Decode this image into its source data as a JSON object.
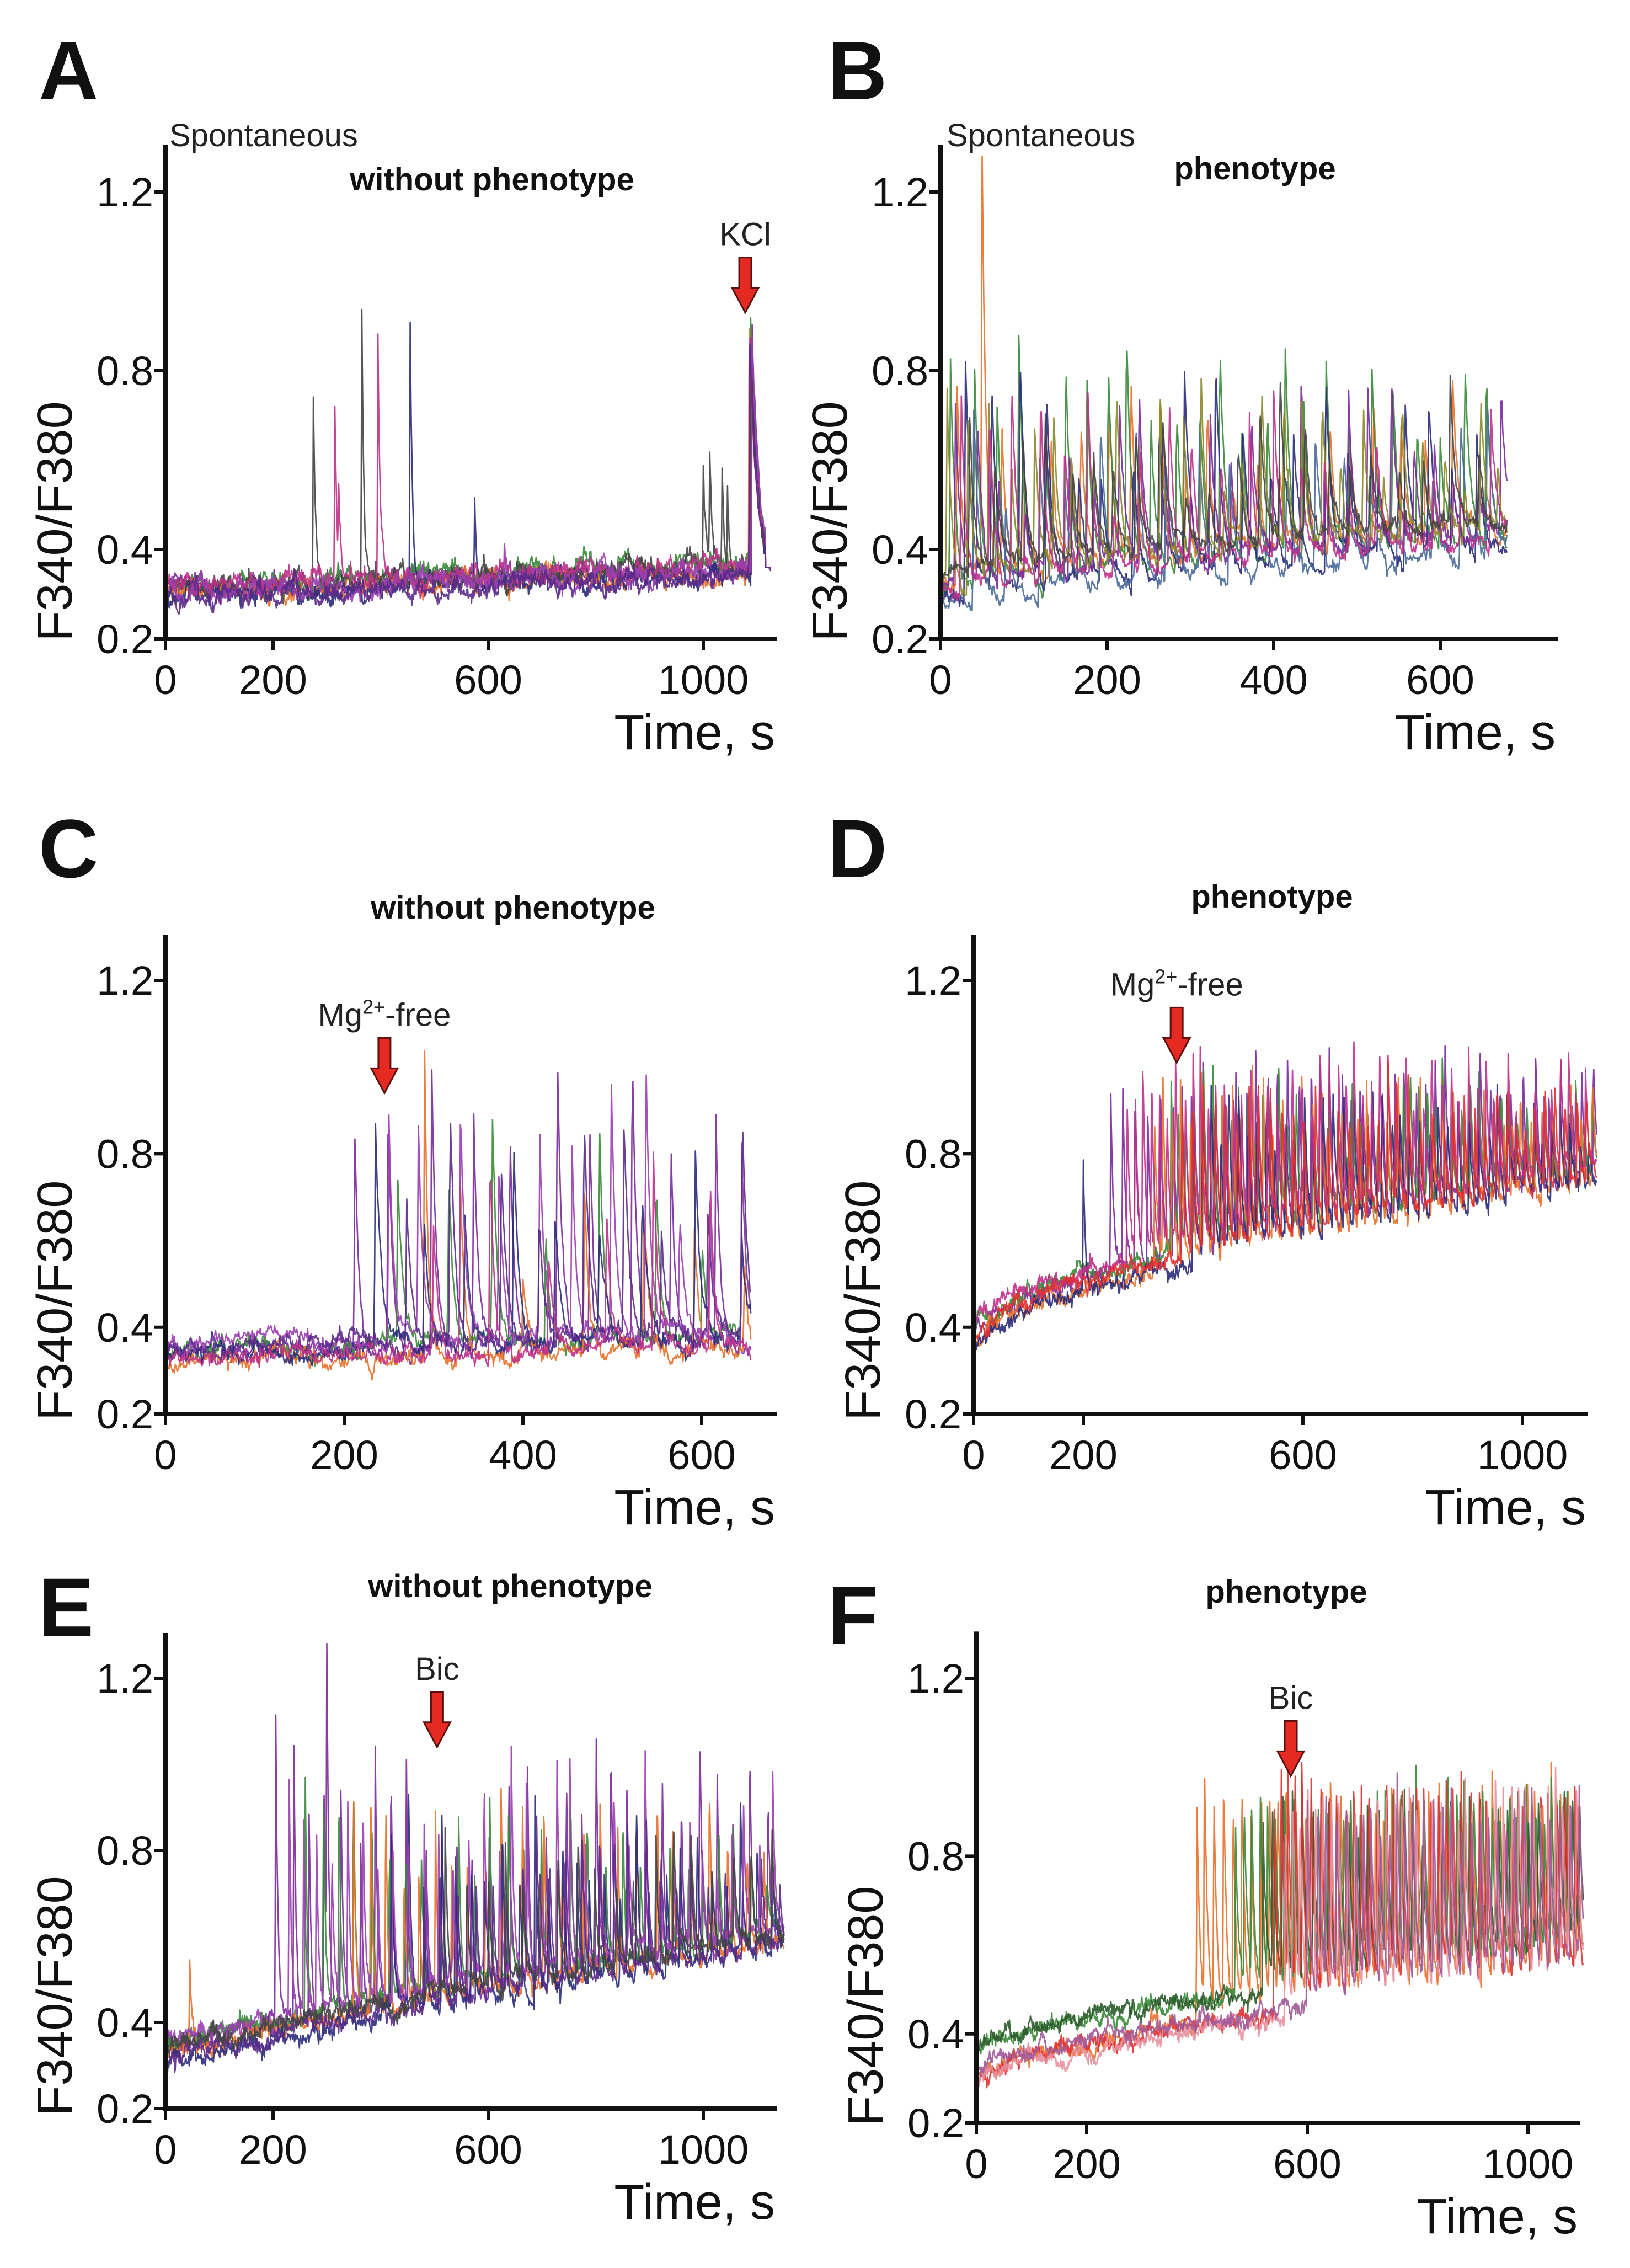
{
  "chart_data": [
    {
      "panel": "A",
      "type": "line",
      "subtitle": "Spontaneous",
      "title": "without phenotype",
      "xlabel": "Time, s",
      "ylabel": "F340/F380",
      "xlim": [
        0,
        1130
      ],
      "ylim": [
        0.2,
        1.3
      ],
      "xticks": [
        0,
        200,
        600,
        1000
      ],
      "xtick_labels": [
        "0",
        "200",
        "600",
        "1000"
      ],
      "yticks": [
        0.2,
        0.4,
        0.8,
        1.2
      ],
      "ytick_labels": [
        "0.2",
        "0.4",
        "0.8",
        "1.2"
      ],
      "annotation": {
        "label": "KCl",
        "t": 1078,
        "y": 0.93
      },
      "duration": 1125,
      "baseline": {
        "start": 0.31,
        "end": 0.36,
        "shape": 1
      },
      "noise": 0.011,
      "event": {
        "t": 1085,
        "peak": 0.92,
        "tau": 12
      },
      "series": [
        {
          "color": "#7b2a9b",
          "offset": 0.0,
          "spikes": []
        },
        {
          "color": "#3a8a3a",
          "offset": 0.01,
          "spikes": []
        },
        {
          "color": "#e8702a",
          "offset": -0.01,
          "spikes": []
        },
        {
          "color": "#2b2b7b",
          "offset": -0.015,
          "spikes": [
            [
              455,
              0.9
            ],
            [
              575,
              0.5
            ]
          ]
        },
        {
          "color": "#444444",
          "offset": 0.005,
          "spikes": [
            [
              275,
              0.75
            ],
            [
              365,
              0.95
            ],
            [
              1000,
              0.6
            ],
            [
              1012,
              0.6
            ],
            [
              1035,
              0.58
            ],
            [
              1045,
              0.55
            ]
          ]
        },
        {
          "color": "#c0308a",
          "offset": 0.012,
          "spikes": [
            [
              315,
              0.74
            ],
            [
              322,
              0.5
            ],
            [
              395,
              0.88
            ]
          ]
        },
        {
          "color": "#9b3fb0",
          "offset": -0.005,
          "spikes": [
            [
              630,
              0.42
            ]
          ]
        },
        {
          "color": "#5a2a8a",
          "offset": -0.02,
          "spikes": []
        }
      ]
    },
    {
      "panel": "B",
      "type": "line",
      "subtitle": "Spontaneous",
      "title": "phenotype",
      "xlabel": "Time, s",
      "ylabel": "F340/F380",
      "xlim": [
        0,
        690
      ],
      "ylim": [
        0.2,
        1.3
      ],
      "xticks": [
        0,
        200,
        400,
        600
      ],
      "xtick_labels": [
        "0",
        "200",
        "400",
        "600"
      ],
      "yticks": [
        0.2,
        0.4,
        0.8,
        1.2
      ],
      "ytick_labels": [
        "0.2",
        "0.4",
        "0.8",
        "1.2"
      ],
      "duration": 680,
      "baseline": {
        "start": 0.3,
        "end": 0.42,
        "shape": 0.7
      },
      "noise": 0.01,
      "series": [
        {
          "color": "#e8702a",
          "offset": 0.02,
          "spikes": [
            [
              50,
              1.05
            ]
          ],
          "train": {
            "start": 20,
            "period": 30,
            "peak": [
              0.55,
              0.8
            ],
            "tau": 6
          }
        },
        {
          "color": "#3a8a3a",
          "offset": 0.0,
          "train": {
            "start": 12,
            "period": 26,
            "peak": [
              0.6,
              0.88
            ],
            "tau": 6
          }
        },
        {
          "color": "#2b2b7b",
          "offset": -0.02,
          "train": {
            "start": 30,
            "period": 33,
            "peak": [
              0.55,
              0.85
            ],
            "tau": 7
          }
        },
        {
          "color": "#7b2a9b",
          "offset": 0.01,
          "train": {
            "start": 18,
            "period": 28,
            "peak": [
              0.5,
              0.8
            ],
            "tau": 6
          }
        },
        {
          "color": "#4a6a9a",
          "offset": -0.03,
          "train": {
            "start": 40,
            "period": 36,
            "peak": [
              0.5,
              0.75
            ],
            "tau": 7
          }
        },
        {
          "color": "#8a8a2a",
          "offset": 0.03,
          "train": {
            "start": 8,
            "period": 24,
            "peak": [
              0.55,
              0.82
            ],
            "tau": 5
          }
        },
        {
          "color": "#c0308a",
          "offset": 0.0,
          "train": {
            "start": 25,
            "period": 31,
            "peak": [
              0.5,
              0.78
            ],
            "tau": 6
          }
        },
        {
          "color": "#444444",
          "offset": 0.04,
          "train": {
            "start": 35,
            "period": 29,
            "peak": [
              0.5,
              0.8
            ],
            "tau": 6
          }
        }
      ]
    },
    {
      "panel": "C",
      "type": "line",
      "title": "without phenotype",
      "xlabel": "Time, s",
      "ylabel": "F340/F380",
      "xlim": [
        0,
        690
      ],
      "ylim": [
        0.2,
        1.3
      ],
      "xticks": [
        0,
        200,
        400,
        600
      ],
      "xtick_labels": [
        "0",
        "200",
        "400",
        "600"
      ],
      "yticks": [
        0.2,
        0.4,
        0.8,
        1.2
      ],
      "ytick_labels": [
        "0.2",
        "0.4",
        "0.8",
        "1.2"
      ],
      "annotation": {
        "label": "Mg",
        "sup": "2+",
        "suffix": "-free",
        "t": 245,
        "y": 0.94
      },
      "duration": 655,
      "baseline": {
        "start": 0.34,
        "end": 0.37,
        "shape": 1
      },
      "noise": 0.011,
      "series": [
        {
          "color": "#7b2a9b",
          "offset": 0.0,
          "train": {
            "start": 212,
            "period": 45,
            "peak": [
              0.7,
              1.05
            ],
            "tau": 5
          }
        },
        {
          "color": "#3a8a3a",
          "offset": 0.01,
          "train": {
            "start": 260,
            "period": 55,
            "peak": [
              0.6,
              0.9
            ],
            "tau": 5
          }
        },
        {
          "color": "#e8702a",
          "offset": -0.02,
          "spikes": [
            [
              290,
              1.05
            ]
          ],
          "train": {
            "start": 330,
            "period": 60,
            "peak": [
              0.5,
              0.8
            ],
            "tau": 5
          }
        },
        {
          "color": "#2b2b7b",
          "offset": 0.0,
          "train": {
            "start": 235,
            "period": 50,
            "peak": [
              0.6,
              0.95
            ],
            "tau": 6
          }
        },
        {
          "color": "#9b3fb0",
          "offset": 0.02,
          "train": {
            "start": 250,
            "period": 40,
            "peak": [
              0.65,
              1.0
            ],
            "tau": 5
          }
        },
        {
          "color": "#5a2a8a",
          "offset": 0.01,
          "train": {
            "start": 270,
            "period": 48,
            "peak": [
              0.6,
              0.95
            ],
            "tau": 6
          }
        },
        {
          "color": "#c0308a",
          "offset": -0.01,
          "train": {
            "start": 300,
            "period": 58,
            "peak": [
              0.55,
              0.85
            ],
            "tau": 5
          }
        }
      ]
    },
    {
      "panel": "D",
      "type": "line",
      "title": "phenotype",
      "xlabel": "Time, s",
      "ylabel": "F340/F380",
      "xlim": [
        0,
        1150
      ],
      "ylim": [
        0.2,
        1.3
      ],
      "xticks": [
        0,
        200,
        600,
        1000
      ],
      "xtick_labels": [
        "0",
        "200",
        "600",
        "1000"
      ],
      "yticks": [
        0.2,
        0.4,
        0.8,
        1.2
      ],
      "ytick_labels": [
        "0.2",
        "0.4",
        "0.8",
        "1.2"
      ],
      "annotation": {
        "label": "Mg",
        "sup": "2+",
        "suffix": "-free",
        "t": 370,
        "y": 1.01
      },
      "duration": 1135,
      "baseline": {
        "start": 0.38,
        "end": 0.74,
        "shape": 0.6
      },
      "noise": 0.01,
      "series": [
        {
          "color": "#7b2a9b",
          "offset": 0.0,
          "train": {
            "start": 250,
            "period": 20,
            "peak": [
              0.9,
              1.08
            ],
            "tau": 5
          }
        },
        {
          "color": "#3a8a3a",
          "offset": 0.01,
          "train": {
            "start": 360,
            "period": 15,
            "peak": [
              0.85,
              1.0
            ],
            "tau": 5
          }
        },
        {
          "color": "#e8702a",
          "offset": -0.02,
          "train": {
            "start": 330,
            "period": 18,
            "peak": [
              0.85,
              1.0
            ],
            "tau": 5
          }
        },
        {
          "color": "#2b2b7b",
          "offset": -0.03,
          "spikes": [
            [
              200,
              0.78
            ]
          ],
          "train": {
            "start": 400,
            "period": 17,
            "peak": [
              0.8,
              0.95
            ],
            "tau": 6
          }
        },
        {
          "color": "#c0308a",
          "offset": 0.02,
          "train": {
            "start": 280,
            "period": 16,
            "peak": [
              0.88,
              1.05
            ],
            "tau": 5
          }
        },
        {
          "color": "#e03030",
          "offset": 0.0,
          "train": {
            "start": 380,
            "period": 19,
            "peak": [
              0.85,
              1.0
            ],
            "tau": 5
          }
        }
      ]
    },
    {
      "panel": "E",
      "type": "line",
      "title": "without phenotype",
      "xlabel": "Time, s",
      "ylabel": "F340/F380",
      "xlim": [
        0,
        1150
      ],
      "ylim": [
        0.2,
        1.3
      ],
      "xticks": [
        0,
        200,
        600,
        1000
      ],
      "xtick_labels": [
        "0",
        "200",
        "600",
        "1000"
      ],
      "yticks": [
        0.2,
        0.4,
        0.8,
        1.2
      ],
      "ytick_labels": [
        "0.2",
        "0.4",
        "0.8",
        "1.2"
      ],
      "annotation": {
        "label": "Bic",
        "t": 505,
        "y": 1.04
      },
      "duration": 1150,
      "baseline": {
        "start": 0.34,
        "end": 0.6,
        "shape": 0.9
      },
      "noise": 0.011,
      "series": [
        {
          "color": "#7b2a9b",
          "offset": 0.0,
          "spikes": [
            [
              300,
              1.15
            ]
          ],
          "train": {
            "start": 205,
            "period": 32,
            "peak": [
              0.8,
              1.1
            ],
            "tau": 4
          }
        },
        {
          "color": "#3a8a3a",
          "offset": 0.01,
          "train": {
            "start": 260,
            "period": 30,
            "peak": [
              0.75,
              1.0
            ],
            "tau": 4
          }
        },
        {
          "color": "#e8702a",
          "offset": -0.01,
          "spikes": [
            [
              45,
              0.55
            ]
          ],
          "train": {
            "start": 350,
            "period": 34,
            "peak": [
              0.75,
              1.0
            ],
            "tau": 4
          }
        },
        {
          "color": "#2b2b7b",
          "offset": -0.03,
          "train": {
            "start": 420,
            "period": 28,
            "peak": [
              0.7,
              0.95
            ],
            "tau": 5
          }
        },
        {
          "color": "#9b3fb0",
          "offset": 0.02,
          "train": {
            "start": 230,
            "period": 26,
            "peak": [
              0.75,
              1.05
            ],
            "tau": 4
          }
        },
        {
          "color": "#5a2a8a",
          "offset": -0.02,
          "train": {
            "start": 480,
            "period": 30,
            "peak": [
              0.7,
              0.95
            ],
            "tau": 5
          }
        },
        {
          "color": "#444444",
          "offset": 0.0,
          "train": {
            "start": 520,
            "period": 36,
            "peak": [
              0.7,
              0.9
            ],
            "tau": 5
          }
        }
      ]
    },
    {
      "panel": "F",
      "type": "line",
      "title": "phenotype",
      "xlabel": "Time, s",
      "ylabel": "F340/F380",
      "xlim": [
        0,
        1130
      ],
      "ylim": [
        0.2,
        1.3
      ],
      "xticks": [
        0,
        200,
        600,
        1000
      ],
      "xtick_labels": [
        "0",
        "200",
        "600",
        "1000"
      ],
      "yticks": [
        0.2,
        0.4,
        0.8,
        1.2
      ],
      "ytick_labels": [
        "0.2",
        "0.4",
        "0.8",
        "1.2"
      ],
      "annotation": {
        "label": "Bic",
        "t": 570,
        "y": 0.98
      },
      "duration": 1100,
      "baseline": {
        "start": 0.3,
        "end": 0.53,
        "shape": 0.65
      },
      "noise": 0.01,
      "series": [
        {
          "color": "#e8702a",
          "offset": 0.0,
          "train": {
            "start": 400,
            "period": 16,
            "peak": [
              0.88,
              0.98
            ],
            "tau": 6
          }
        },
        {
          "color": "#3a8a3a",
          "offset": 0.05,
          "train": {
            "start": 470,
            "period": 15,
            "peak": [
              0.85,
              0.96
            ],
            "tau": 6
          }
        },
        {
          "color": "#2b5a2b",
          "offset": 0.06,
          "train": {
            "start": 520,
            "period": 17,
            "peak": [
              0.85,
              0.95
            ],
            "tau": 6
          }
        },
        {
          "color": "#e03030",
          "offset": 0.0,
          "train": {
            "start": 540,
            "period": 15,
            "peak": [
              0.88,
              0.97
            ],
            "tau": 6
          }
        },
        {
          "color": "#e890a0",
          "offset": -0.01,
          "train": {
            "start": 560,
            "period": 14,
            "peak": [
              0.85,
              0.95
            ],
            "tau": 6
          }
        },
        {
          "color": "#a05a9a",
          "offset": 0.01,
          "train": {
            "start": 600,
            "period": 16,
            "peak": [
              0.85,
              0.95
            ],
            "tau": 6
          }
        }
      ]
    }
  ]
}
